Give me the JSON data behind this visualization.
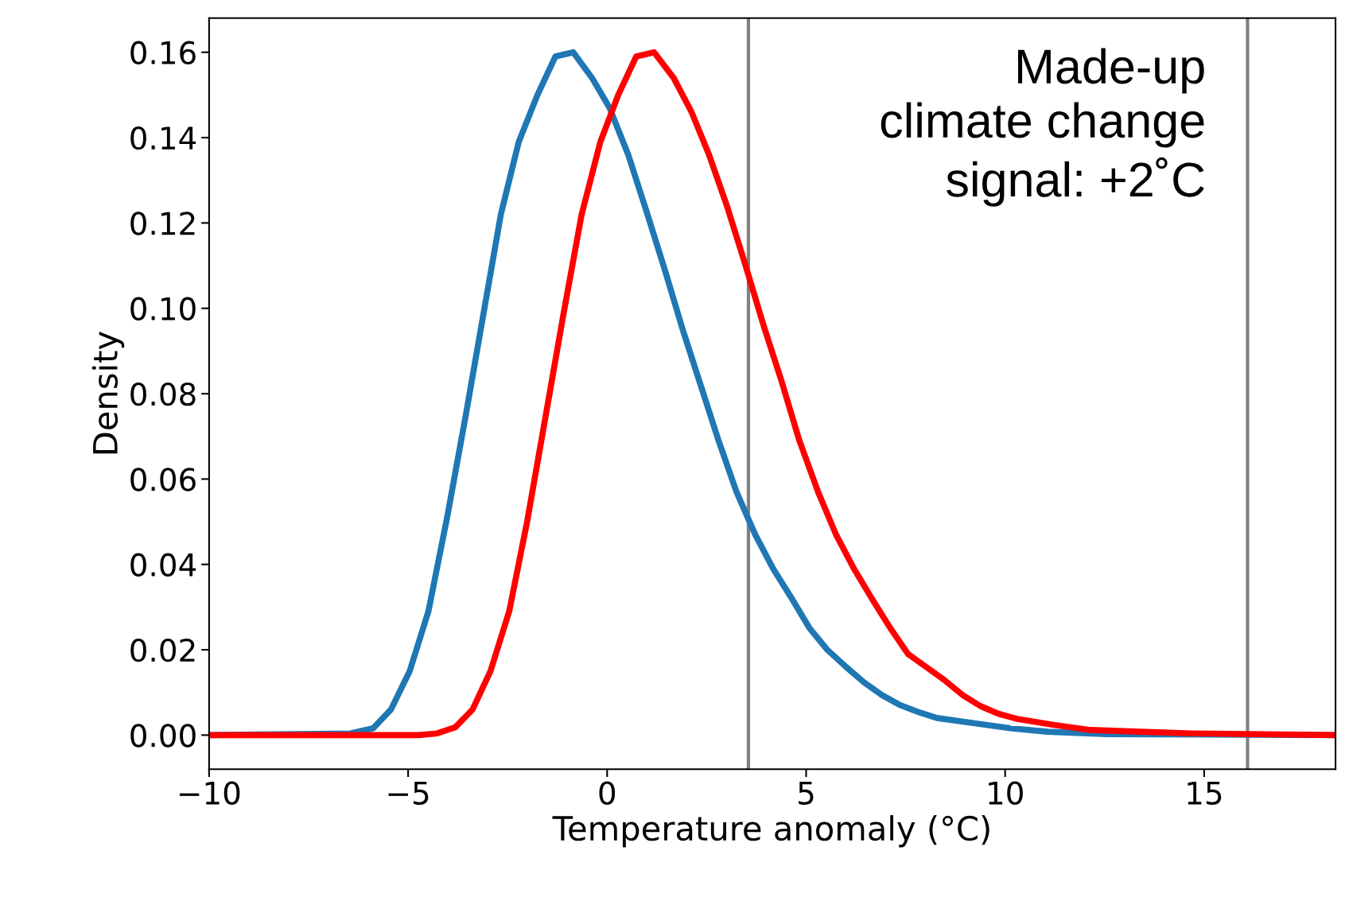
{
  "chart_data": {
    "type": "line",
    "xlabel": "Temperature anomaly (°C)",
    "ylabel": "Density",
    "annotations": [
      "Made-up\nclimate change\nsignal: +2˚C"
    ],
    "xlim": [
      -10,
      18.3
    ],
    "ylim": [
      -0.008,
      0.168
    ],
    "xticks": [
      {
        "value": -10,
        "label": "−10"
      },
      {
        "value": -5,
        "label": "−5"
      },
      0,
      5,
      10,
      15
    ],
    "yticks": [
      {
        "value": 0,
        "label": "0.00"
      },
      0.02,
      0.04,
      0.06,
      0.08,
      {
        "value": 0.1,
        "label": "0.10"
      },
      0.12,
      0.14,
      0.16
    ],
    "grid": false,
    "legend": false,
    "marker": "none",
    "line_style": "solid",
    "ref_lines": [
      {
        "axis": "x",
        "value": 3.55,
        "color": "#808080"
      },
      {
        "axis": "x",
        "value": 16.09,
        "color": "#808080"
      }
    ],
    "series": [
      {
        "color": "#1f77b4",
        "x": [
          -10,
          -6.45,
          -5.88,
          -5.43,
          -4.96,
          -4.49,
          -4.02,
          -3.55,
          -3.12,
          -2.67,
          -2.22,
          -1.75,
          -1.3,
          -0.85,
          -0.38,
          0.06,
          0.53,
          0.98,
          1.45,
          1.9,
          2.35,
          2.8,
          3.25,
          3.72,
          4.17,
          4.64,
          5.09,
          5.53,
          6.0,
          6.45,
          6.9,
          7.37,
          7.82,
          8.29,
          9.2,
          10.13,
          11.07,
          12.56,
          18.3
        ],
        "values": [
          0,
          0.0004,
          0.0016,
          0.006,
          0.015,
          0.029,
          0.051,
          0.075,
          0.098,
          0.122,
          0.139,
          0.15,
          0.159,
          0.16,
          0.154,
          0.147,
          0.136,
          0.123,
          0.109,
          0.095,
          0.082,
          0.069,
          0.057,
          0.047,
          0.039,
          0.032,
          0.025,
          0.02,
          0.016,
          0.0124,
          0.0094,
          0.007,
          0.0054,
          0.004,
          0.0028,
          0.0016,
          0.0008,
          0.0002,
          0
        ]
      },
      {
        "color": "#ff0000",
        "x": [
          -10,
          -4.74,
          -4.27,
          -3.82,
          -3.38,
          -2.93,
          -2.46,
          -2.01,
          -1.54,
          -1.09,
          -0.64,
          -0.17,
          0.28,
          0.73,
          1.18,
          1.67,
          2.12,
          2.56,
          3.01,
          3.48,
          3.93,
          4.38,
          4.83,
          5.3,
          5.75,
          6.2,
          6.65,
          7.12,
          7.56,
          8.01,
          8.46,
          8.93,
          9.38,
          9.83,
          10.3,
          11.22,
          12.14,
          13.4,
          14.7,
          18.3
        ],
        "values": [
          0,
          0,
          0.0004,
          0.0018,
          0.006,
          0.015,
          0.029,
          0.05,
          0.075,
          0.099,
          0.122,
          0.139,
          0.15,
          0.159,
          0.16,
          0.154,
          0.146,
          0.136,
          0.124,
          0.11,
          0.096,
          0.083,
          0.069,
          0.057,
          0.047,
          0.039,
          0.032,
          0.025,
          0.019,
          0.016,
          0.013,
          0.0094,
          0.0068,
          0.005,
          0.0038,
          0.0024,
          0.0012,
          0.0008,
          0.0004,
          0
        ]
      }
    ]
  }
}
